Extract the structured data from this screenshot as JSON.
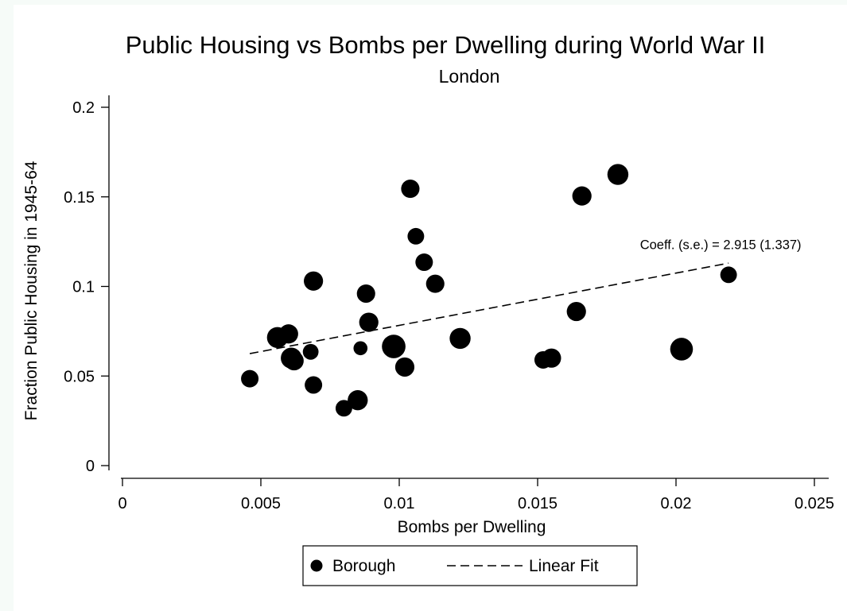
{
  "chart_data": {
    "type": "scatter",
    "title": "Public Housing vs Bombs per Dwelling during World War II",
    "subtitle": "London",
    "xlabel": "Bombs per Dwelling",
    "ylabel": "Fraction Public Housing in 1945-64",
    "xlim": [
      0,
      0.025
    ],
    "ylim": [
      0,
      0.2
    ],
    "x_ticks": [
      {
        "value": 0,
        "label": "0"
      },
      {
        "value": 0.005,
        "label": "0.005"
      },
      {
        "value": 0.01,
        "label": "0.01"
      },
      {
        "value": 0.015,
        "label": "0.015"
      },
      {
        "value": 0.02,
        "label": "0.02"
      },
      {
        "value": 0.025,
        "label": "0.025"
      }
    ],
    "y_ticks": [
      {
        "value": 0,
        "label": "0"
      },
      {
        "value": 0.05,
        "label": "0.05"
      },
      {
        "value": 0.1,
        "label": "0.1"
      },
      {
        "value": 0.15,
        "label": "0.15"
      },
      {
        "value": 0.2,
        "label": "0.2"
      }
    ],
    "grid": false,
    "legend": {
      "position": "bottom",
      "entries": [
        {
          "label": "Borough",
          "marker": "circle"
        },
        {
          "label": "Linear Fit",
          "marker": "dashed-line"
        }
      ]
    },
    "series": [
      {
        "name": "Borough",
        "type": "scatter",
        "points": [
          {
            "x": 0.0046,
            "y": 0.0485,
            "size": 1.0
          },
          {
            "x": 0.0056,
            "y": 0.0715,
            "size": 1.2
          },
          {
            "x": 0.006,
            "y": 0.0735,
            "size": 1.1
          },
          {
            "x": 0.0061,
            "y": 0.06,
            "size": 1.2
          },
          {
            "x": 0.0062,
            "y": 0.0585,
            "size": 1.1
          },
          {
            "x": 0.0068,
            "y": 0.0635,
            "size": 0.9
          },
          {
            "x": 0.0069,
            "y": 0.103,
            "size": 1.1
          },
          {
            "x": 0.0069,
            "y": 0.045,
            "size": 1.0
          },
          {
            "x": 0.008,
            "y": 0.032,
            "size": 0.95
          },
          {
            "x": 0.0085,
            "y": 0.0365,
            "size": 1.15
          },
          {
            "x": 0.0086,
            "y": 0.0655,
            "size": 0.8
          },
          {
            "x": 0.0088,
            "y": 0.096,
            "size": 1.05
          },
          {
            "x": 0.0089,
            "y": 0.08,
            "size": 1.1
          },
          {
            "x": 0.0098,
            "y": 0.0665,
            "size": 1.35
          },
          {
            "x": 0.0102,
            "y": 0.055,
            "size": 1.1
          },
          {
            "x": 0.0104,
            "y": 0.1545,
            "size": 1.05
          },
          {
            "x": 0.0106,
            "y": 0.128,
            "size": 0.95
          },
          {
            "x": 0.0109,
            "y": 0.1135,
            "size": 1.0
          },
          {
            "x": 0.0113,
            "y": 0.1015,
            "size": 1.05
          },
          {
            "x": 0.0122,
            "y": 0.071,
            "size": 1.2
          },
          {
            "x": 0.0152,
            "y": 0.059,
            "size": 1.0
          },
          {
            "x": 0.0155,
            "y": 0.06,
            "size": 1.1
          },
          {
            "x": 0.0164,
            "y": 0.086,
            "size": 1.1
          },
          {
            "x": 0.0166,
            "y": 0.1505,
            "size": 1.1
          },
          {
            "x": 0.0179,
            "y": 0.1625,
            "size": 1.2
          },
          {
            "x": 0.0202,
            "y": 0.065,
            "size": 1.3
          },
          {
            "x": 0.0219,
            "y": 0.1065,
            "size": 0.95
          }
        ]
      },
      {
        "name": "Linear Fit",
        "type": "line",
        "style": "dashed",
        "x": [
          0.0046,
          0.0219
        ],
        "y": [
          0.0625,
          0.113
        ]
      }
    ],
    "annotations": [
      {
        "text": "Coeff. (s.e.) = 2.915 (1.337)",
        "x": 0.0219,
        "y": 0.1235
      }
    ],
    "colors": {
      "marker": "#000000",
      "line": "#000000",
      "frame": "#f6fbf8",
      "background": "#ffffff"
    }
  }
}
